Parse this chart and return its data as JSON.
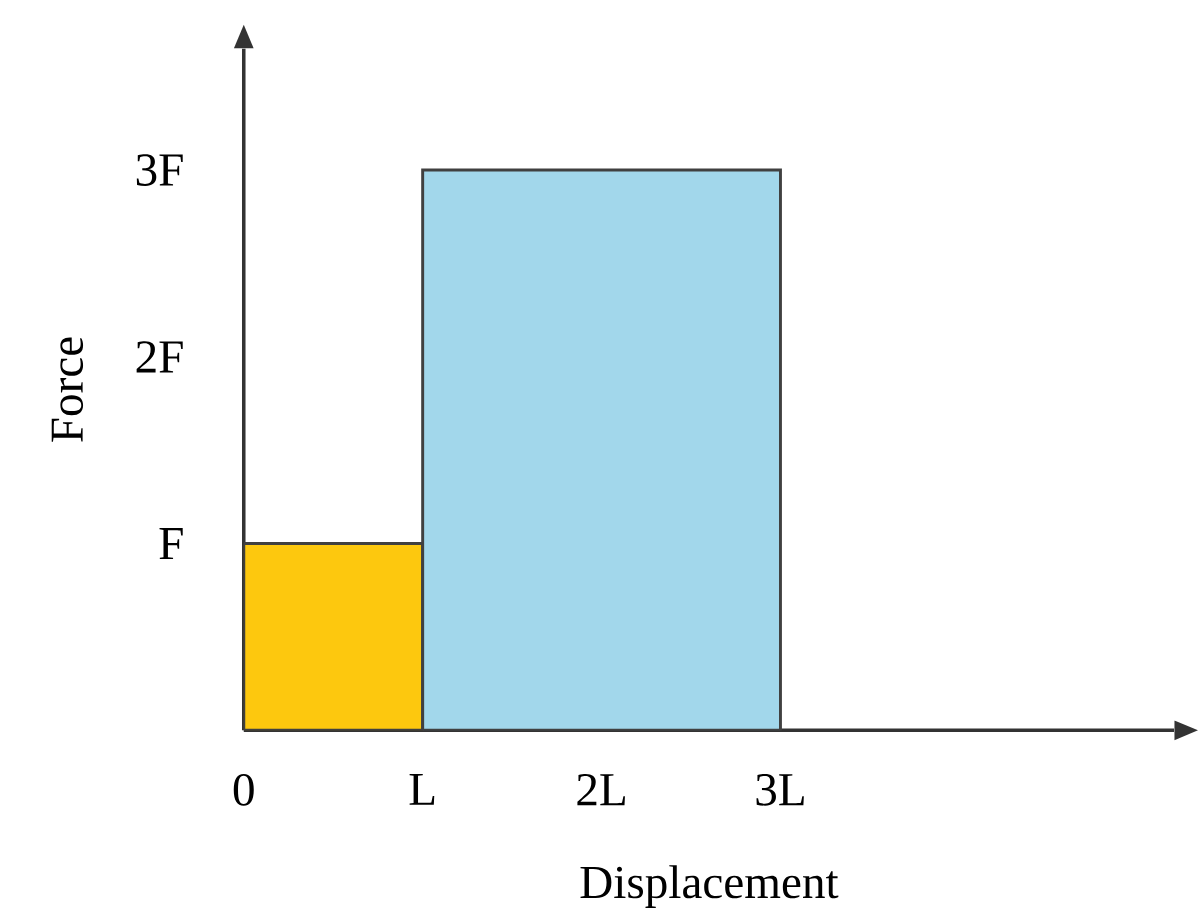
{
  "chart_data": {
    "type": "histogram",
    "xlabel": "Displacement",
    "ylabel": "Force",
    "bins": [
      0,
      1,
      3
    ],
    "values": [
      1,
      3
    ],
    "colors": [
      "#fdc80e",
      "#a2d7eb"
    ],
    "xlim": [
      0,
      5.2
    ],
    "ylim": [
      0,
      3.65
    ],
    "xticks": [
      0,
      {
        "value": 1,
        "label": "L"
      },
      {
        "value": 2,
        "label": "2L"
      },
      {
        "value": 3,
        "label": "3L"
      }
    ],
    "yticks": [
      {
        "value": 1,
        "label": "F"
      },
      {
        "value": 2,
        "label": "2F"
      },
      {
        "value": 3,
        "label": "3F"
      }
    ],
    "grid": false
  }
}
